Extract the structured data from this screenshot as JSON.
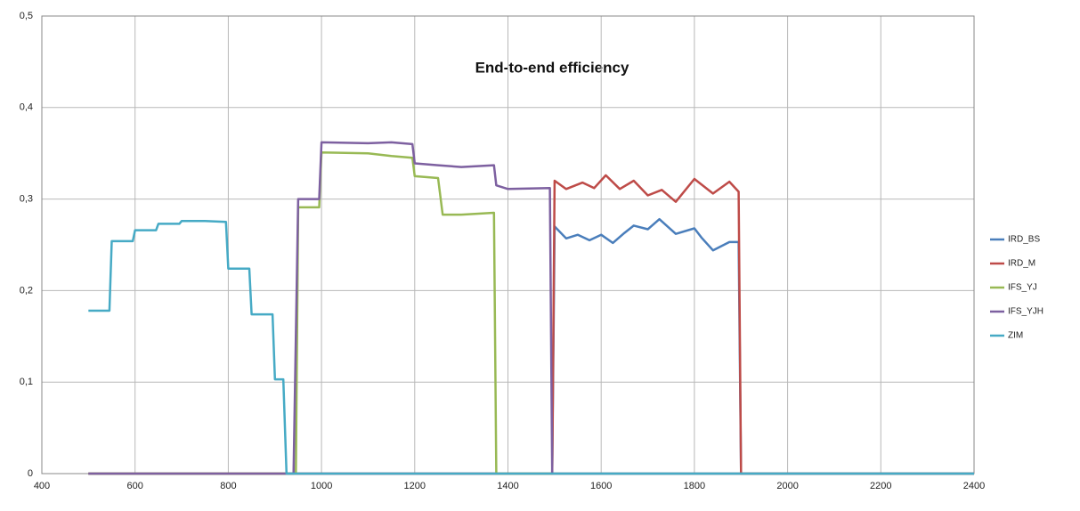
{
  "chart_data": {
    "type": "line",
    "title": "End-to-end efficiency",
    "xlim": [
      400,
      2400
    ],
    "xticks": [
      400,
      600,
      800,
      1000,
      1200,
      1400,
      1600,
      1800,
      2000,
      2200,
      2400
    ],
    "ylim": [
      0,
      0.5
    ],
    "yticks": [
      0,
      {
        "value": 0.1,
        "label": "0,1"
      },
      {
        "value": 0.2,
        "label": "0,2"
      },
      {
        "value": 0.3,
        "label": "0,3"
      },
      {
        "value": 0.4,
        "label": "0,4"
      },
      {
        "value": 0.5,
        "label": "0,5"
      }
    ],
    "grid": true,
    "legend": "right",
    "series": [
      {
        "name": "IRD_BS",
        "color": "#4a7ebb",
        "x": [
          500,
          1495,
          1500,
          1525,
          1550,
          1575,
          1600,
          1625,
          1650,
          1670,
          1700,
          1725,
          1760,
          1800,
          1815,
          1840,
          1875,
          1895,
          1900,
          2400
        ],
        "values": [
          0,
          0,
          0.27,
          0.257,
          0.261,
          0.255,
          0.261,
          0.252,
          0.263,
          0.271,
          0.267,
          0.278,
          0.262,
          0.268,
          0.258,
          0.244,
          0.253,
          0.253,
          0,
          0
        ]
      },
      {
        "name": "IRD_M",
        "color": "#be4b48",
        "x": [
          500,
          1495,
          1500,
          1525,
          1560,
          1585,
          1610,
          1640,
          1670,
          1700,
          1730,
          1760,
          1800,
          1840,
          1875,
          1895,
          1900,
          2400
        ],
        "values": [
          0,
          0,
          0.32,
          0.311,
          0.318,
          0.312,
          0.326,
          0.311,
          0.32,
          0.304,
          0.31,
          0.297,
          0.322,
          0.306,
          0.319,
          0.308,
          0,
          0
        ]
      },
      {
        "name": "IFS_YJ",
        "color": "#98b954",
        "x": [
          500,
          945,
          950,
          995,
          1000,
          1100,
          1150,
          1195,
          1200,
          1250,
          1260,
          1300,
          1370,
          1375,
          2400
        ],
        "values": [
          0,
          0,
          0.291,
          0.291,
          0.351,
          0.35,
          0.347,
          0.345,
          0.325,
          0.323,
          0.283,
          0.283,
          0.285,
          0,
          0
        ]
      },
      {
        "name": "IFS_YJH",
        "color": "#7d60a0",
        "x": [
          500,
          940,
          950,
          995,
          1000,
          1100,
          1150,
          1195,
          1200,
          1250,
          1300,
          1370,
          1375,
          1400,
          1490,
          1495,
          2400
        ],
        "values": [
          0,
          0,
          0.3,
          0.3,
          0.362,
          0.361,
          0.362,
          0.36,
          0.339,
          0.337,
          0.335,
          0.337,
          0.315,
          0.311,
          0.312,
          0,
          0
        ]
      },
      {
        "name": "ZIM",
        "color": "#46aac5",
        "x": [
          500,
          545,
          550,
          595,
          600,
          645,
          650,
          695,
          700,
          750,
          795,
          800,
          845,
          850,
          895,
          900,
          918,
          925,
          2400
        ],
        "values": [
          0.178,
          0.178,
          0.254,
          0.254,
          0.266,
          0.266,
          0.273,
          0.273,
          0.276,
          0.276,
          0.275,
          0.224,
          0.224,
          0.174,
          0.174,
          0.103,
          0.103,
          0,
          0
        ]
      }
    ]
  }
}
